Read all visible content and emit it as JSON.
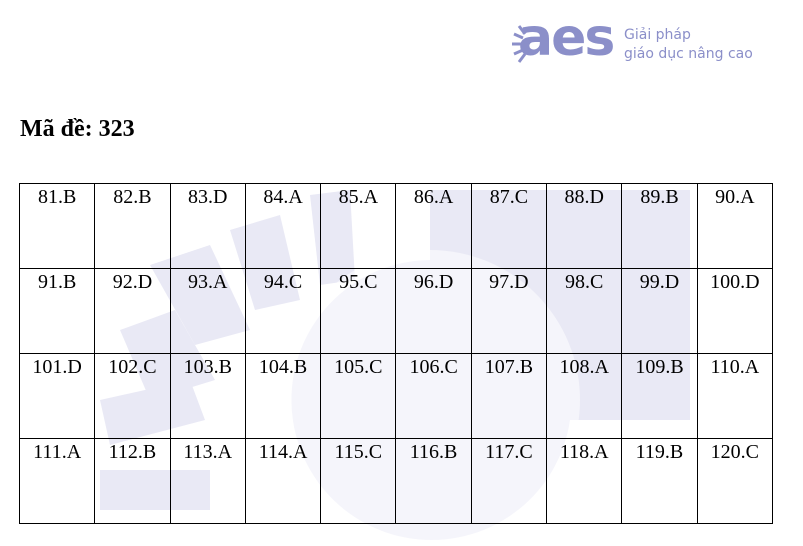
{
  "header": {
    "brand": "aes",
    "tagline": [
      "Giải pháp",
      "giáo dục nâng cao"
    ]
  },
  "title": "Mã đề: 323",
  "table": {
    "rows": [
      [
        "81.B",
        "82.B",
        "83.D",
        "84.A",
        "85.A",
        "86.A",
        "87.C",
        "88.D",
        "89.B",
        "90.A"
      ],
      [
        "91.B",
        "92.D",
        "93.A",
        "94.C",
        "95.C",
        "96.D",
        "97.D",
        "98.C",
        "99.D",
        "100.D"
      ],
      [
        "101.D",
        "102.C",
        "103.B",
        "104.B",
        "105.C",
        "106.C",
        "107.B",
        "108.A",
        "109.B",
        "110.A"
      ],
      [
        "111.A",
        "112.B",
        "113.A",
        "114.A",
        "115.C",
        "116.B",
        "117.C",
        "118.A",
        "119.B",
        "120.C"
      ]
    ]
  }
}
